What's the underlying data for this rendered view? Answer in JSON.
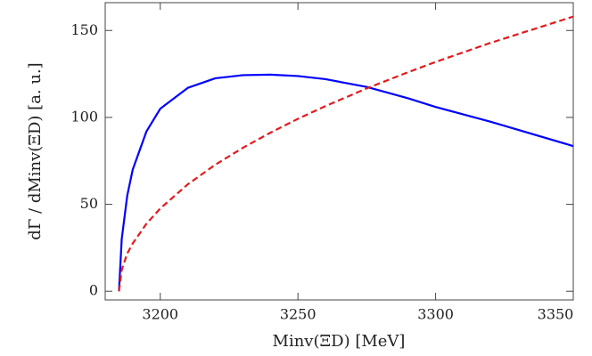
{
  "chart_data": {
    "type": "line",
    "x_label": "Minv(ΞD) [MeV]",
    "y_label": "dΓ / dMinv(ΞD) [a. u.]",
    "x": [
      3185,
      3186,
      3188,
      3190,
      3195,
      3200,
      3210,
      3220,
      3230,
      3240,
      3250,
      3260,
      3275,
      3290,
      3300,
      3320,
      3350
    ],
    "series": [
      {
        "name": "solid",
        "color": "#0000ff",
        "dash": false,
        "values": [
          0,
          30,
          55,
          70,
          92,
          105,
          117,
          122.5,
          124.3,
          124.6,
          123.8,
          122,
          117.5,
          111,
          106,
          97.5,
          83.5
        ]
      },
      {
        "name": "dashed",
        "color": "#e31a1c",
        "dash": true,
        "values": [
          0,
          12.3,
          21.7,
          27.5,
          38.9,
          47.6,
          61.5,
          72.8,
          82.5,
          91.2,
          99.2,
          106.5,
          116.7,
          126.0,
          131.9,
          142.9,
          158.0
        ]
      }
    ],
    "xlim": [
      3180,
      3350
    ],
    "xticks": [
      3200,
      3250,
      3300,
      3350
    ],
    "ylim": [
      -5,
      166
    ],
    "yticks": [
      0,
      50,
      100,
      150
    ]
  }
}
